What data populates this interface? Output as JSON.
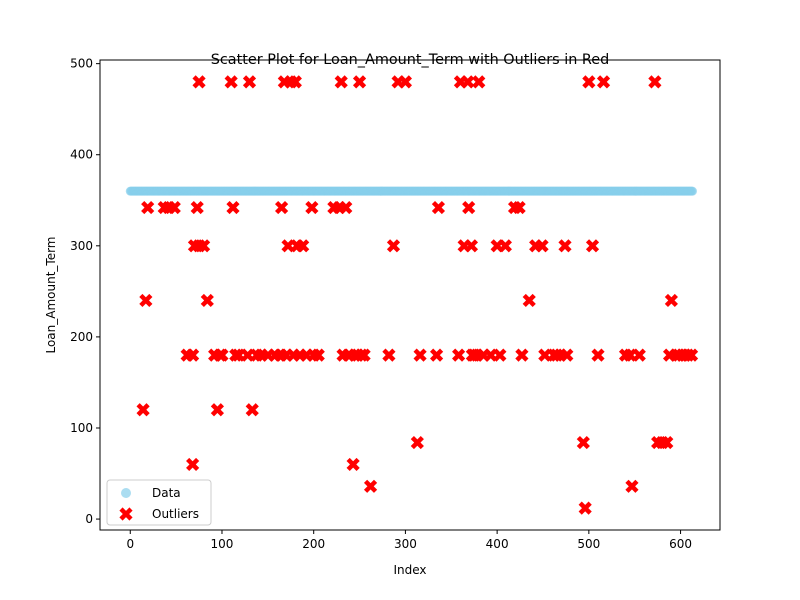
{
  "chart_data": {
    "type": "scatter",
    "title": "Scatter Plot for Loan_Amount_Term with Outliers in Red",
    "xlabel": "Index",
    "ylabel": "Loan_Amount_Term",
    "xlim": [
      -33,
      643
    ],
    "ylim": [
      -12,
      504
    ],
    "xticks": [
      0,
      100,
      200,
      300,
      400,
      500,
      600
    ],
    "yticks": [
      0,
      100,
      200,
      300,
      400,
      500
    ],
    "grid": false,
    "legend_position": "bottom-left",
    "colors": {
      "data": "#87CEEB",
      "outliers": "#FF0000"
    },
    "series": [
      {
        "name": "Data",
        "marker": "circle",
        "x_range": [
          0,
          613
        ],
        "constant_y": 360
      },
      {
        "name": "Outliers",
        "marker": "x",
        "points": [
          [
            14,
            120
          ],
          [
            17,
            240
          ],
          [
            19,
            342
          ],
          [
            37,
            342
          ],
          [
            42,
            342
          ],
          [
            48,
            342
          ],
          [
            62,
            180
          ],
          [
            68,
            180
          ],
          [
            68,
            60
          ],
          [
            70,
            300
          ],
          [
            73,
            342
          ],
          [
            75,
            300
          ],
          [
            75,
            480
          ],
          [
            80,
            300
          ],
          [
            84,
            240
          ],
          [
            92,
            180
          ],
          [
            95,
            120
          ],
          [
            98,
            180
          ],
          [
            100,
            180
          ],
          [
            110,
            480
          ],
          [
            112,
            342
          ],
          [
            115,
            180
          ],
          [
            118,
            180
          ],
          [
            128,
            180
          ],
          [
            130,
            480
          ],
          [
            133,
            120
          ],
          [
            138,
            180
          ],
          [
            143,
            180
          ],
          [
            150,
            180
          ],
          [
            158,
            180
          ],
          [
            164,
            180
          ],
          [
            165,
            342
          ],
          [
            168,
            480
          ],
          [
            170,
            180
          ],
          [
            172,
            300
          ],
          [
            175,
            480
          ],
          [
            178,
            180
          ],
          [
            180,
            480
          ],
          [
            182,
            300
          ],
          [
            185,
            180
          ],
          [
            188,
            300
          ],
          [
            192,
            180
          ],
          [
            198,
            342
          ],
          [
            200,
            180
          ],
          [
            205,
            180
          ],
          [
            222,
            342
          ],
          [
            228,
            342
          ],
          [
            230,
            480
          ],
          [
            232,
            180
          ],
          [
            235,
            342
          ],
          [
            238,
            180
          ],
          [
            243,
            60
          ],
          [
            245,
            180
          ],
          [
            248,
            180
          ],
          [
            250,
            480
          ],
          [
            252,
            180
          ],
          [
            255,
            180
          ],
          [
            262,
            36
          ],
          [
            282,
            180
          ],
          [
            287,
            300
          ],
          [
            292,
            480
          ],
          [
            300,
            480
          ],
          [
            313,
            84
          ],
          [
            316,
            180
          ],
          [
            334,
            180
          ],
          [
            336,
            342
          ],
          [
            358,
            180
          ],
          [
            360,
            480
          ],
          [
            364,
            300
          ],
          [
            368,
            480
          ],
          [
            369,
            342
          ],
          [
            372,
            300
          ],
          [
            373,
            180
          ],
          [
            375,
            180
          ],
          [
            378,
            180
          ],
          [
            380,
            480
          ],
          [
            385,
            180
          ],
          [
            393,
            180
          ],
          [
            400,
            300
          ],
          [
            403,
            180
          ],
          [
            409,
            300
          ],
          [
            419,
            342
          ],
          [
            424,
            342
          ],
          [
            427,
            180
          ],
          [
            435,
            240
          ],
          [
            442,
            300
          ],
          [
            449,
            300
          ],
          [
            452,
            180
          ],
          [
            462,
            180
          ],
          [
            465,
            180
          ],
          [
            469,
            180
          ],
          [
            474,
            300
          ],
          [
            476,
            180
          ],
          [
            494,
            84
          ],
          [
            496,
            12
          ],
          [
            500,
            480
          ],
          [
            504,
            300
          ],
          [
            510,
            180
          ],
          [
            516,
            480
          ],
          [
            540,
            180
          ],
          [
            545,
            180
          ],
          [
            547,
            36
          ],
          [
            555,
            180
          ],
          [
            572,
            480
          ],
          [
            575,
            84
          ],
          [
            580,
            84
          ],
          [
            585,
            84
          ],
          [
            588,
            180
          ],
          [
            590,
            240
          ],
          [
            595,
            180
          ],
          [
            598,
            180
          ],
          [
            602,
            180
          ],
          [
            605,
            180
          ],
          [
            608,
            180
          ],
          [
            612,
            180
          ]
        ]
      }
    ]
  }
}
